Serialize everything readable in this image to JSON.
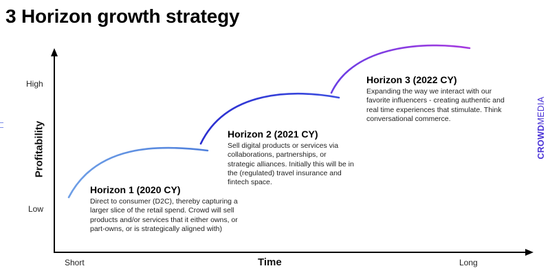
{
  "title": "3 Horizon growth strategy",
  "axes": {
    "y_label": "Profitability",
    "y_ticks": {
      "high": "High",
      "low": "Low"
    },
    "x_label": "Time",
    "x_ticks": {
      "short": "Short",
      "long": "Long"
    }
  },
  "horizons": [
    {
      "title": "Horizon 1 (2020 CY)",
      "description": "Direct to consumer (D2C), thereby capturing a larger slice of the retail spend. Crowd will sell products and/or services that it either owns, or part-owns, or is strategically aligned with)",
      "color": "#5b8fe0"
    },
    {
      "title": "Horizon 2 (2021 CY)",
      "description": "Sell digital products or services via collaborations, partnerships, or strategic alliances. Initially this will be in the (regulated) travel insurance and fintech space.",
      "color": "#2f37d6"
    },
    {
      "title": "Horizon 3 (2022 CY)",
      "description": "Expanding the way we interact with our favorite influencers - creating authentic and real time experiences that stimulate. Think conversational commerce.",
      "color": "#8c3ce0"
    }
  ],
  "brand": {
    "part1": "CROWD",
    "part2": "MEDIA",
    "color": "#4a33d6"
  }
}
